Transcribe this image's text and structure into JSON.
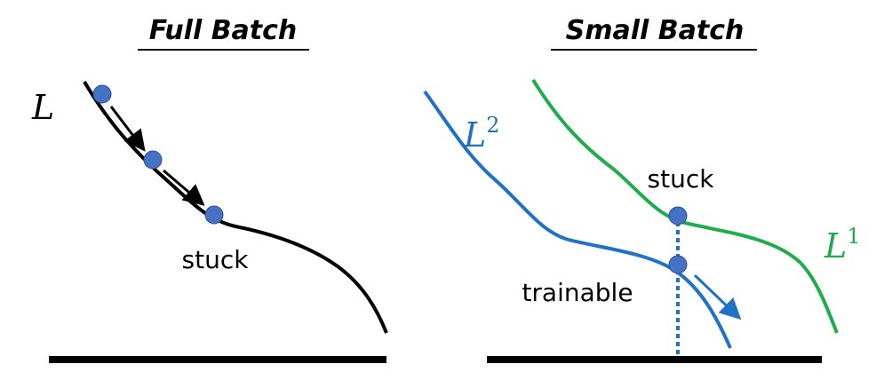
{
  "panels": [
    {
      "title": "Full Batch",
      "curve_label": {
        "base": "L"
      },
      "annotations": [
        "stuck"
      ]
    },
    {
      "title": "Small Batch",
      "curves": [
        {
          "base": "L",
          "sup": "2"
        },
        {
          "base": "L",
          "sup": "1"
        }
      ],
      "annotations": [
        "stuck",
        "trainable"
      ]
    }
  ]
}
